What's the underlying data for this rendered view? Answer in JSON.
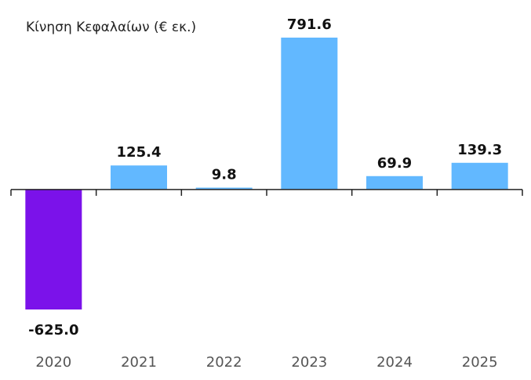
{
  "chart_data": {
    "type": "bar",
    "title": "Κίνηση Κεφαλαίων (€ εκ.)",
    "categories": [
      "2020",
      "2021",
      "2022",
      "2023",
      "2024",
      "2025"
    ],
    "values": [
      -625.0,
      125.4,
      9.8,
      791.6,
      69.9,
      139.3
    ],
    "value_labels": [
      "-625.0",
      "125.4",
      "9.8",
      "791.6",
      "69.9",
      "139.3"
    ],
    "colors": [
      "#7b12ea",
      "#62b8ff",
      "#62b8ff",
      "#62b8ff",
      "#62b8ff",
      "#62b8ff"
    ]
  }
}
